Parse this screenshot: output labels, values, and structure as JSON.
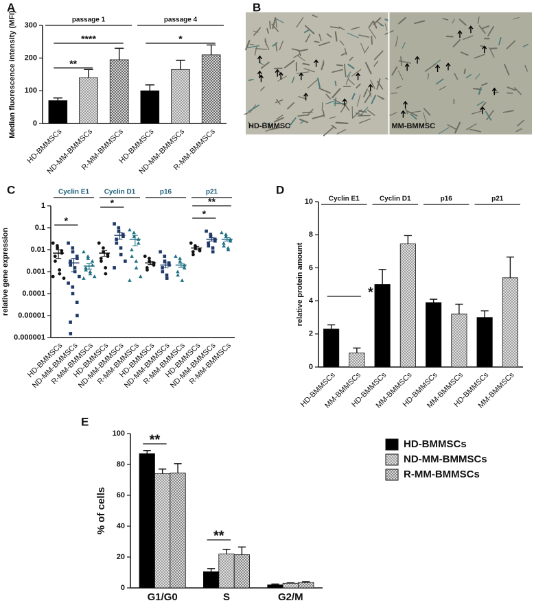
{
  "chart_data": [
    {
      "type": "bar",
      "panel": "A",
      "y_label": "Median fluorescence intensity (MFI)",
      "categories": [
        "HD-BMMSCs",
        "ND-MM-BMMSCs",
        "R-MM-BMMSCs",
        "HD-BMMSCs",
        "ND-MM-BMMSCs",
        "R-MM-BMMSCs"
      ],
      "group_labels": [
        "passage 1",
        "passage 4"
      ],
      "series": [
        {
          "values": [
            70,
            140,
            195,
            100,
            165,
            210
          ],
          "errors": [
            8,
            25,
            35,
            18,
            28,
            30
          ],
          "colors": [
            "#000000",
            "#8a8a8a",
            "#4d4d4d",
            "#000000",
            "#8a8a8a",
            "#4d4d4d"
          ]
        }
      ],
      "annotations": [
        "**",
        "****",
        "*"
      ],
      "ylim": [
        0,
        300
      ],
      "yticks": [
        0,
        100,
        200,
        300
      ]
    },
    {
      "type": "image",
      "panel": "B",
      "labels": [
        "HD-BMMSC",
        "MM-BMMSC"
      ]
    },
    {
      "type": "dotplot",
      "panel": "C",
      "y_label": "relative gene expression",
      "log_y": true,
      "categories": [
        "HD-BMMSCs",
        "ND-MM-BMMSCs",
        "R-MM-BMMSCs",
        "HD-BMMSCs",
        "ND-MM-BMMSCs",
        "R-MM-BMMSCs",
        "HD-BMMSCs",
        "ND-MM-BMMSCs",
        "R-MM-BMMSCs",
        "HD-BMMSCs",
        "ND-MM-BMMSCs",
        "R-MM-BMMSCs"
      ],
      "group_labels": [
        "Cyclin E1",
        "Cyclin D1",
        "p16",
        "p21"
      ],
      "markers": [
        "circle",
        "square",
        "triangle",
        "circle",
        "square",
        "triangle",
        "circle",
        "square",
        "triangle",
        "circle",
        "square",
        "triangle"
      ],
      "colors": [
        "#111111",
        "#1f3a68",
        "#1f6f85",
        "#111111",
        "#1f3a68",
        "#1f6f85",
        "#111111",
        "#1f3a68",
        "#1f6f85",
        "#111111",
        "#1f3a68",
        "#1f6f85"
      ],
      "points": [
        [
          0.02,
          0.015,
          0.012,
          0.009,
          0.007,
          0.005,
          0.003,
          0.0012,
          0.0008,
          0.0005,
          0.0006
        ],
        [
          0.02,
          0.012,
          0.008,
          0.005,
          0.004,
          0.003,
          0.002,
          0.0015,
          0.001,
          0.0006,
          0.0003,
          0.0002,
          0.0001,
          4e-05,
          1e-05,
          5e-06,
          1.5e-06
        ],
        [
          0.008,
          0.005,
          0.004,
          0.003,
          0.002,
          0.0015,
          0.0012,
          0.001,
          0.0008,
          0.0006,
          0.0005
        ],
        [
          0.02,
          0.012,
          0.008,
          0.006,
          0.005,
          0.004,
          0.003,
          0.0015,
          0.0008
        ],
        [
          0.15,
          0.1,
          0.07,
          0.05,
          0.04,
          0.03,
          0.02,
          0.012,
          0.006,
          0.003,
          0.0015
        ],
        [
          0.08,
          0.06,
          0.04,
          0.03,
          0.02,
          0.01,
          0.005,
          0.003,
          0.0015,
          0.0006,
          0.0004
        ],
        [
          0.005,
          0.004,
          0.003,
          0.0025,
          0.002,
          0.0015,
          0.0012
        ],
        [
          0.008,
          0.005,
          0.003,
          0.0025,
          0.002,
          0.0015,
          0.001,
          0.0007,
          0.0005
        ],
        [
          0.005,
          0.004,
          0.003,
          0.002,
          0.0015,
          0.001,
          0.0007,
          0.0004
        ],
        [
          0.02,
          0.015,
          0.012,
          0.01,
          0.009,
          0.008,
          0.006
        ],
        [
          0.07,
          0.05,
          0.04,
          0.03,
          0.025,
          0.02,
          0.015,
          0.012,
          0.008
        ],
        [
          0.06,
          0.05,
          0.04,
          0.03,
          0.025,
          0.02,
          0.015,
          0.012,
          0.01
        ]
      ],
      "means": [
        0.007,
        0.0025,
        0.0018,
        0.007,
        0.045,
        0.03,
        0.0025,
        0.002,
        0.002,
        0.012,
        0.03,
        0.03
      ],
      "sems": [
        0.003,
        0.0015,
        0.0005,
        0.002,
        0.015,
        0.015,
        0.0004,
        0.0005,
        0.0004,
        0.002,
        0.005,
        0.005
      ],
      "annotations": [
        "*",
        "*",
        "*",
        "**"
      ],
      "ylim": [
        1e-06,
        1
      ],
      "yticks": [
        1e-06,
        1e-05,
        0.0001,
        0.001,
        0.01,
        0.1,
        1
      ]
    },
    {
      "type": "bar",
      "panel": "D",
      "y_label": "relative protein amount",
      "categories": [
        "HD-BMMSCs",
        "MM-BMMSCs",
        "HD-BMMSCs",
        "MM-BMMSCs",
        "HD-BMMSCs",
        "MM-BMMSCs",
        "HD-BMMSCs",
        "MM-BMMSCs"
      ],
      "group_labels": [
        "Cyclin  E1",
        "Cyclin  D1",
        "p16",
        "p21"
      ],
      "series": [
        {
          "values": [
            2.3,
            0.85,
            5.0,
            7.45,
            3.9,
            3.2,
            3.0,
            5.4
          ],
          "errors": [
            0.25,
            0.3,
            0.9,
            0.5,
            0.2,
            0.6,
            0.4,
            1.25
          ],
          "colors": [
            "#000000",
            "#8a8a8a",
            "#000000",
            "#8a8a8a",
            "#000000",
            "#8a8a8a",
            "#000000",
            "#8a8a8a"
          ]
        }
      ],
      "annotations": [
        "*"
      ],
      "ylim": [
        0,
        10
      ],
      "yticks": [
        0,
        2,
        4,
        6,
        8,
        10
      ]
    },
    {
      "type": "bar",
      "panel": "E",
      "y_label": "% of cells",
      "categories": [
        "G1/G0",
        "S",
        "G2/M"
      ],
      "series": [
        {
          "name": "HD-BMMSCs",
          "color": "#000000",
          "values": [
            87,
            10.5,
            2
          ],
          "errors": [
            2,
            2,
            0.5
          ]
        },
        {
          "name": "ND-MM-BMMSCs",
          "color": "#8a8a8a",
          "values": [
            74,
            22,
            3
          ],
          "errors": [
            3,
            3,
            0.3
          ]
        },
        {
          "name": "R-MM-BMMSCs",
          "color": "#6f6f6f",
          "values": [
            74.5,
            21.5,
            3.5
          ],
          "errors": [
            6,
            5,
            0.5
          ]
        }
      ],
      "annotations": [
        "**",
        "**"
      ],
      "legend": "top-right",
      "ylim": [
        0,
        100
      ],
      "yticks": [
        0,
        20,
        40,
        60,
        80,
        100
      ]
    }
  ]
}
